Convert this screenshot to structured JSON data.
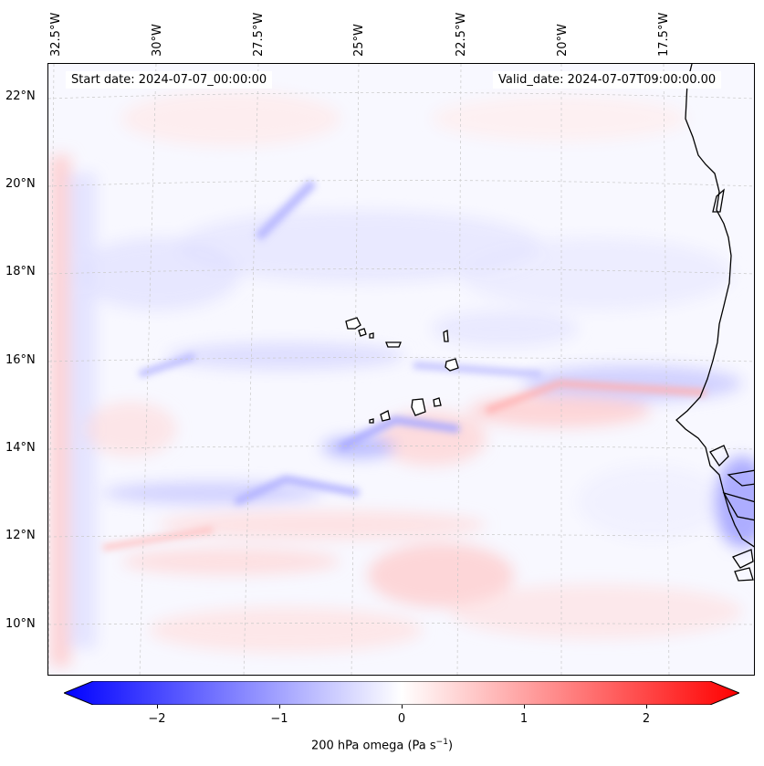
{
  "map": {
    "header": {
      "start_date": "Start date: 2024-07-07_00:00:00",
      "valid_date": "Valid_date: 2024-07-07T09:00:00.00"
    },
    "lon_labels": [
      "32.5°W",
      "30°W",
      "27.5°W",
      "25°W",
      "22.5°W",
      "20°W",
      "17.5°W"
    ],
    "lat_labels": [
      "22°N",
      "20°N",
      "18°N",
      "16°N",
      "14°N",
      "12°N",
      "10°N"
    ],
    "colorbar": {
      "ticks": [
        "−2",
        "−1",
        "0",
        "1",
        "2"
      ],
      "label": "200 hPa omega (Pa s",
      "label_sup": "−1",
      "label_end": ")",
      "min": -2.5,
      "max": 2.5,
      "colors": {
        "negative": "#0000ff",
        "zero": "#ffffff",
        "positive": "#ff0000"
      }
    },
    "features": [
      "Cape Verde islands",
      "West African coastline",
      "Senegal",
      "Gambia",
      "Guinea-Bissau"
    ]
  }
}
